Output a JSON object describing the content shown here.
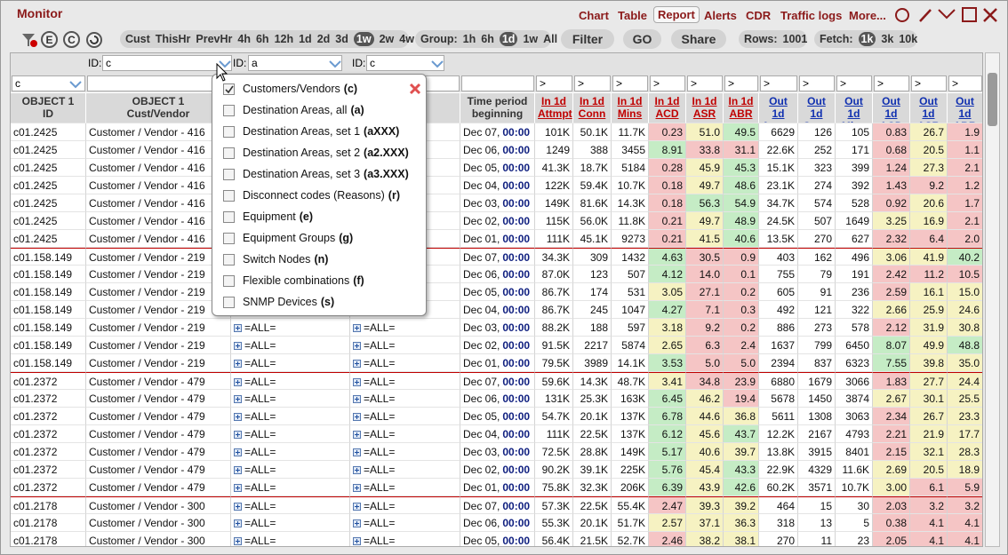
{
  "header": {
    "title": "Monitor",
    "nav": [
      "Chart",
      "Table",
      "Report",
      "Alerts",
      "CDR",
      "Traffic logs",
      "More..."
    ],
    "nav_active": 2
  },
  "toolbar": {
    "icons": [
      "E",
      "C"
    ],
    "periods": [
      "Cust",
      "ThisHr",
      "PrevHr",
      "4h",
      "6h",
      "12h",
      "1d",
      "2d",
      "3d",
      "1w",
      "2w",
      "4w"
    ],
    "period_active": 9,
    "group_label": "Group:",
    "groups": [
      "1h",
      "6h",
      "1d",
      "1w",
      "All"
    ],
    "group_active": 2,
    "filter": "Filter",
    "go": "GO",
    "share": "Share",
    "rows_label": "Rows:",
    "rows": 1001,
    "fetch_label": "Fetch:",
    "fetch": [
      "1k",
      "3k",
      "10k"
    ],
    "fetch_active": 0
  },
  "table": {
    "id_selectors": [
      {
        "label": "ID:",
        "value": "c"
      },
      {
        "label": "ID:",
        "value": "a"
      },
      {
        "label": "ID:",
        "value": "c"
      }
    ],
    "filter": "c",
    "numeric_filter": ">",
    "columns": [
      "OBJECT 1\nID",
      "OBJECT 1\nCust/Vendor",
      null,
      null,
      "Time period\nbeginning",
      "In 1d\nAttmpt",
      "In 1d\nConn",
      "In 1d\nMins",
      "In 1d\nACD",
      "In 1d\nASR",
      "In 1d\nABR",
      "Out 1d\nAttmpt",
      "Out 1d\nConn",
      "Out 1d\nMins",
      "Out 1d\nACD",
      "Out 1d\nASR",
      "Out 1d\nABR"
    ],
    "cell_colors": {
      "r": "#f5c5c5",
      "g": "#c5ecc5",
      "y": "#f6f2c2"
    },
    "rows": [
      [
        "c01.2425",
        "Customer / Vendor - 416",
        null,
        null,
        "Dec 07,",
        "00:00",
        "101K",
        "50.1K",
        "11.7K",
        "0.23",
        "51.0",
        "49.5",
        "6629",
        "126",
        "105",
        "0.83",
        "26.7",
        "1.9",
        "rygryr"
      ],
      [
        "c01.2425",
        "Customer / Vendor - 416",
        null,
        null,
        "Dec 06,",
        "00:00",
        "1249",
        "388",
        "3455",
        "8.91",
        "33.8",
        "31.1",
        "22.6K",
        "252",
        "171",
        "0.68",
        "20.5",
        "1.1",
        "grrryr"
      ],
      [
        "c01.2425",
        "Customer / Vendor - 416",
        null,
        null,
        "Dec 05,",
        "00:00",
        "41.3K",
        "18.7K",
        "5184",
        "0.28",
        "45.9",
        "45.3",
        "15.1K",
        "323",
        "399",
        "1.24",
        "27.3",
        "2.1",
        "rygryr"
      ],
      [
        "c01.2425",
        "Customer / Vendor - 416",
        null,
        null,
        "Dec 04,",
        "00:00",
        "122K",
        "59.4K",
        "10.7K",
        "0.18",
        "49.7",
        "48.6",
        "23.1K",
        "274",
        "392",
        "1.43",
        "9.2",
        "1.2",
        "rygrrr"
      ],
      [
        "c01.2425",
        "Customer / Vendor - 416",
        null,
        null,
        "Dec 03,",
        "00:00",
        "149K",
        "81.6K",
        "14.3K",
        "0.18",
        "56.3",
        "54.9",
        "34.7K",
        "574",
        "528",
        "0.92",
        "20.6",
        "1.7",
        "rggryr"
      ],
      [
        "c01.2425",
        "Customer / Vendor - 416",
        null,
        null,
        "Dec 02,",
        "00:00",
        "115K",
        "56.0K",
        "11.8K",
        "0.21",
        "49.7",
        "48.9",
        "24.5K",
        "507",
        "1649",
        "3.25",
        "16.9",
        "2.1",
        "ryg yyr"
      ],
      [
        "c01.2425",
        "Customer / Vendor - 416",
        null,
        null,
        "Dec 01,",
        "00:00",
        "111K",
        "45.1K",
        "9273",
        "0.21",
        "41.5",
        "40.6",
        "13.5K",
        "270",
        "627",
        "2.32",
        "6.4",
        "2.0",
        "rygrrr"
      ],
      [
        "c01.158.149",
        "Customer / Vendor - 219",
        null,
        null,
        "Dec 07,",
        "00:00",
        "34.3K",
        "309",
        "1432",
        "4.63",
        "30.5",
        "0.9",
        "403",
        "162",
        "496",
        "3.06",
        "41.9",
        "40.2",
        "grryyg"
      ],
      [
        "c01.158.149",
        "Customer / Vendor - 219",
        null,
        null,
        "Dec 06,",
        "00:00",
        "87.0K",
        "123",
        "507",
        "4.12",
        "14.0",
        "0.1",
        "755",
        "79",
        "191",
        "2.42",
        "11.2",
        "10.5",
        "grrrrr"
      ],
      [
        "c01.158.149",
        "Customer / Vendor - 219",
        null,
        null,
        "Dec 05,",
        "00:00",
        "86.7K",
        "174",
        "531",
        "3.05",
        "27.1",
        "0.2",
        "605",
        "91",
        "236",
        "2.59",
        "16.1",
        "15.0",
        "yrrryy"
      ],
      [
        "c01.158.149",
        "Customer / Vendor - 219",
        null,
        null,
        "Dec 04,",
        "00:00",
        "86.7K",
        "245",
        "1047",
        "4.27",
        "7.1",
        "0.3",
        "492",
        "121",
        "322",
        "2.66",
        "25.9",
        "24.6",
        "grryyy"
      ],
      [
        "c01.158.149",
        "Customer / Vendor - 219",
        "=ALL=",
        "=ALL=",
        "Dec 03,",
        "00:00",
        "88.2K",
        "188",
        "597",
        "3.18",
        "9.2",
        "0.2",
        "886",
        "273",
        "578",
        "2.12",
        "31.9",
        "30.8",
        "yrrryy"
      ],
      [
        "c01.158.149",
        "Customer / Vendor - 219",
        "=ALL=",
        "=ALL=",
        "Dec 02,",
        "00:00",
        "91.5K",
        "2217",
        "5874",
        "2.65",
        "6.3",
        "2.4",
        "1637",
        "799",
        "6450",
        "8.07",
        "49.9",
        "48.8",
        "yrrgyg"
      ],
      [
        "c01.158.149",
        "Customer / Vendor - 219",
        "=ALL=",
        "=ALL=",
        "Dec 01,",
        "00:00",
        "79.5K",
        "3989",
        "14.1K",
        "3.53",
        "5.0",
        "5.0",
        "2394",
        "837",
        "6323",
        "7.55",
        "39.8",
        "35.0",
        "grrgyy"
      ],
      [
        "c01.2372",
        "Customer / Vendor - 479",
        "=ALL=",
        "=ALL=",
        "Dec 07,",
        "00:00",
        "59.6K",
        "14.3K",
        "48.7K",
        "3.41",
        "34.8",
        "23.9",
        "6880",
        "1679",
        "3066",
        "1.83",
        "27.7",
        "24.4",
        "yrrryy"
      ],
      [
        "c01.2372",
        "Customer / Vendor - 479",
        "=ALL=",
        "=ALL=",
        "Dec 06,",
        "00:00",
        "131K",
        "25.3K",
        "163K",
        "6.45",
        "46.2",
        "19.4",
        "5678",
        "1450",
        "3874",
        "2.67",
        "30.1",
        "25.5",
        "gyryyy"
      ],
      [
        "c01.2372",
        "Customer / Vendor - 479",
        "=ALL=",
        "=ALL=",
        "Dec 05,",
        "00:00",
        "54.7K",
        "20.1K",
        "137K",
        "6.78",
        "44.6",
        "36.8",
        "5611",
        "1308",
        "3063",
        "2.34",
        "26.7",
        "23.3",
        "gyyryy"
      ],
      [
        "c01.2372",
        "Customer / Vendor - 479",
        "=ALL=",
        "=ALL=",
        "Dec 04,",
        "00:00",
        "111K",
        "22.5K",
        "137K",
        "6.12",
        "45.6",
        "43.7",
        "12.2K",
        "2167",
        "4793",
        "2.21",
        "21.9",
        "17.7",
        "gygryy"
      ],
      [
        "c01.2372",
        "Customer / Vendor - 479",
        "=ALL=",
        "=ALL=",
        "Dec 03,",
        "00:00",
        "72.5K",
        "28.8K",
        "149K",
        "5.17",
        "40.6",
        "39.7",
        "13.8K",
        "3915",
        "8401",
        "2.15",
        "32.1",
        "28.3",
        "gyyryy"
      ],
      [
        "c01.2372",
        "Customer / Vendor - 479",
        "=ALL=",
        "=ALL=",
        "Dec 02,",
        "00:00",
        "90.2K",
        "39.1K",
        "225K",
        "5.76",
        "45.4",
        "43.3",
        "22.9K",
        "4329",
        "11.6K",
        "2.69",
        "20.5",
        "18.9",
        "gygyyy"
      ],
      [
        "c01.2372",
        "Customer / Vendor - 479",
        "=ALL=",
        "=ALL=",
        "Dec 01,",
        "00:00",
        "75.8K",
        "32.3K",
        "206K",
        "6.39",
        "43.9",
        "42.6",
        "60.2K",
        "3571",
        "10.7K",
        "3.00",
        "6.1",
        "5.9",
        "gygyrr"
      ],
      [
        "c01.2178",
        "Customer / Vendor - 300",
        "=ALL=",
        "=ALL=",
        "Dec 07,",
        "00:00",
        "57.3K",
        "22.5K",
        "55.4K",
        "2.47",
        "39.3",
        "39.2",
        "464",
        "15",
        "30",
        "2.03",
        "3.2",
        "3.2",
        "ryyrrr"
      ],
      [
        "c01.2178",
        "Customer / Vendor - 300",
        "=ALL=",
        "=ALL=",
        "Dec 06,",
        "00:00",
        "55.3K",
        "20.1K",
        "51.7K",
        "2.57",
        "37.1",
        "36.3",
        "318",
        "13",
        "5",
        "0.38",
        "4.1",
        "4.1",
        "yyyrrr"
      ],
      [
        "c01.2178",
        "Customer / Vendor - 300",
        "=ALL=",
        "=ALL=",
        "Dec 05,",
        "00:00",
        "56.4K",
        "21.5K",
        "52.7K",
        "2.46",
        "38.2",
        "38.1",
        "270",
        "11",
        "23",
        "2.05",
        "4.1",
        "4.1",
        "ryyrrr"
      ]
    ]
  },
  "dropdown": {
    "items": [
      {
        "label": "Customers/Vendors",
        "code": "(c)",
        "checked": true
      },
      {
        "label": "Destination Areas, all",
        "code": "(a)",
        "checked": false
      },
      {
        "label": "Destination Areas, set 1",
        "code": "(aXXX)",
        "checked": false
      },
      {
        "label": "Destination Areas, set 2",
        "code": "(a2.XXX)",
        "checked": false
      },
      {
        "label": "Destination Areas, set 3",
        "code": "(a3.XXX)",
        "checked": false
      },
      {
        "label": "Disconnect codes (Reasons)",
        "code": "(r)",
        "checked": false
      },
      {
        "label": "Equipment",
        "code": "(e)",
        "checked": false
      },
      {
        "label": "Equipment Groups",
        "code": "(g)",
        "checked": false
      },
      {
        "label": "Switch Nodes",
        "code": "(n)",
        "checked": false
      },
      {
        "label": "Flexible combinations",
        "code": "(f)",
        "checked": false
      },
      {
        "label": "SNMP Devices",
        "code": "(s)",
        "checked": false
      }
    ]
  }
}
